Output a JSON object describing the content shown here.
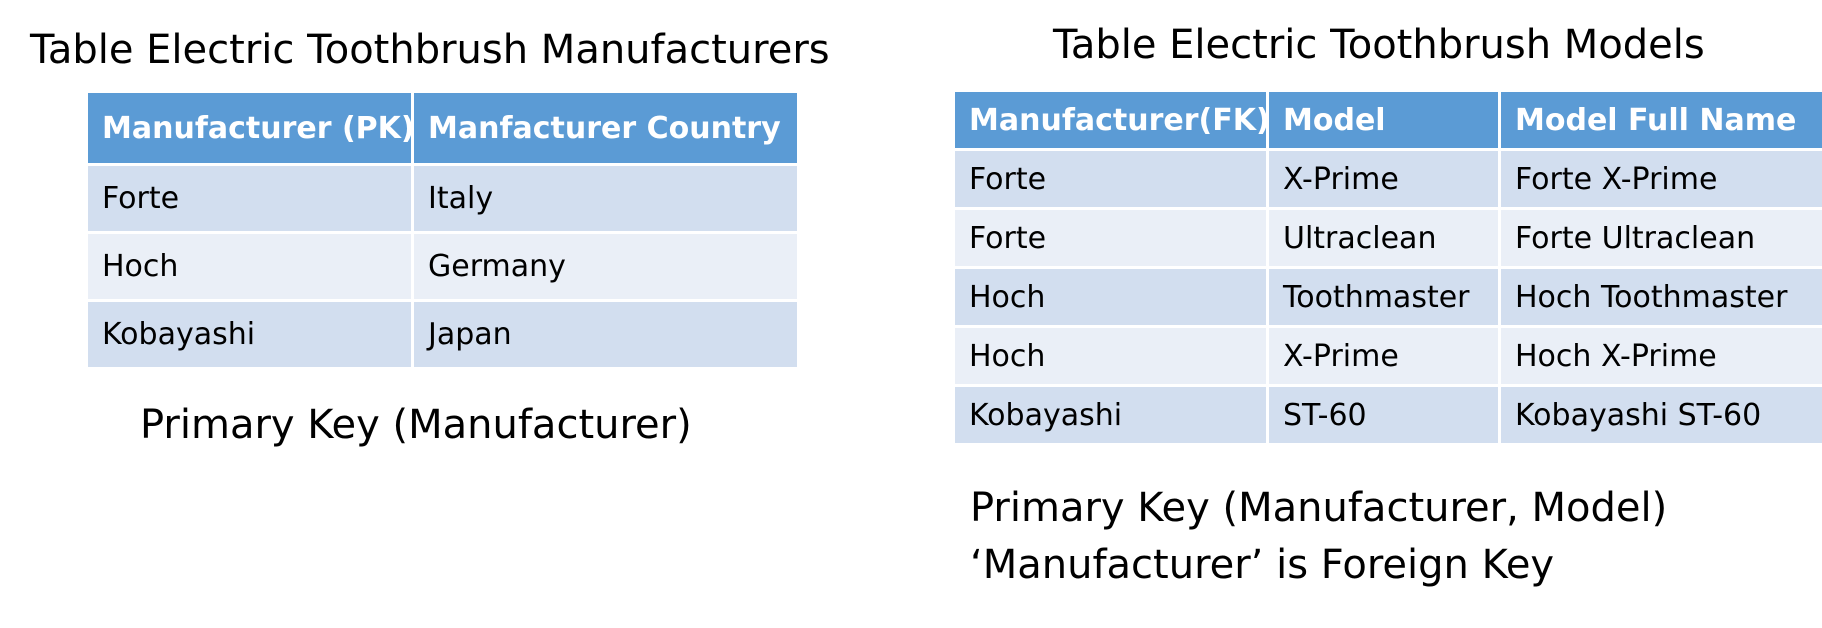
{
  "left": {
    "title": "Table Electric Toothbrush Manufacturers",
    "headers": [
      "Manufacturer (PK)",
      "Manfacturer Country"
    ],
    "rows": [
      [
        "Forte",
        "Italy"
      ],
      [
        "Hoch",
        "Germany"
      ],
      [
        "Kobayashi",
        "Japan"
      ]
    ],
    "note": "Primary Key (Manufacturer)"
  },
  "right": {
    "title": "Table Electric Toothbrush Models",
    "headers": [
      "Manufacturer(FK)",
      "Model",
      "Model Full Name"
    ],
    "rows": [
      [
        "Forte",
        "X-Prime",
        "Forte X-Prime"
      ],
      [
        "Forte",
        "Ultraclean",
        "Forte Ultraclean"
      ],
      [
        "Hoch",
        "Toothmaster",
        "Hoch Toothmaster"
      ],
      [
        "Hoch",
        "X-Prime",
        "Hoch X-Prime"
      ],
      [
        "Kobayashi",
        "ST-60",
        "Kobayashi ST-60"
      ]
    ],
    "note_line1": "Primary Key (Manufacturer, Model)",
    "note_line2": "‘Manufacturer’ is Foreign Key"
  },
  "colors": {
    "header_bg": "#5b9bd5",
    "row_odd_bg": "#d2deef",
    "row_even_bg": "#eaeff7"
  }
}
